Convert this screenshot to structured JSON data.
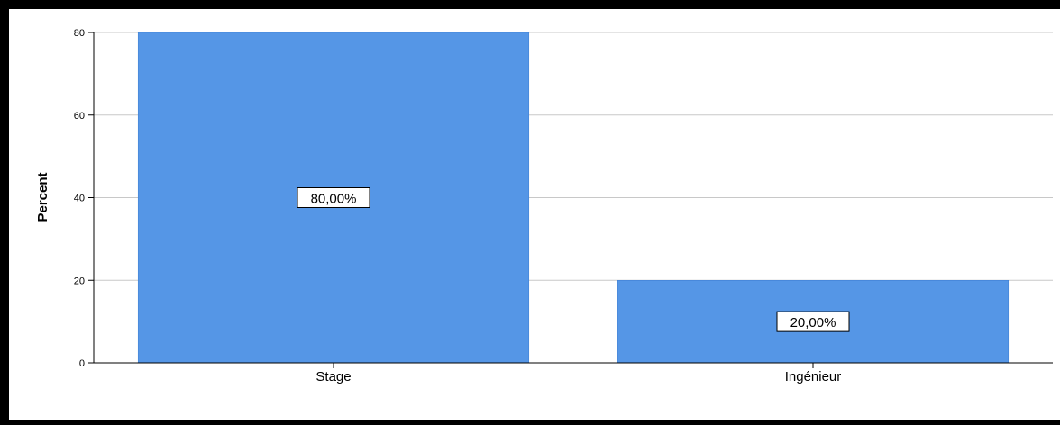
{
  "chart_data": {
    "type": "bar",
    "title": "",
    "xlabel": "",
    "ylabel": "Percent",
    "categories": [
      "Stage",
      "Ingénieur"
    ],
    "values": [
      80,
      20
    ],
    "data_labels": [
      "80,00%",
      "20,00%"
    ],
    "ylim": [
      0,
      80
    ],
    "yticks": [
      0,
      20,
      40,
      60,
      80
    ],
    "grid": true,
    "bar_color": "#5596e6",
    "grid_color": "#c8c8c8"
  }
}
